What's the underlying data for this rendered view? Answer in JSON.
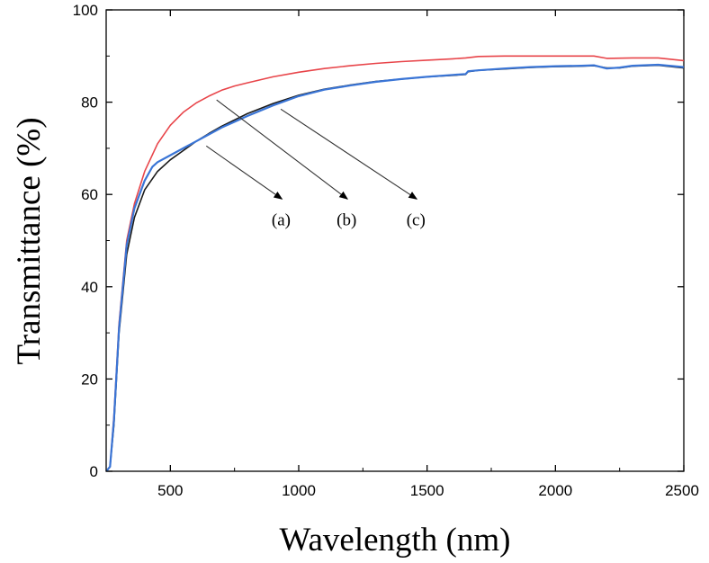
{
  "chart_data": {
    "type": "line",
    "title": "",
    "xlabel": "Wavelength (nm)",
    "ylabel": "Transmittance (%)",
    "xlim": [
      250,
      2500
    ],
    "ylim": [
      0,
      100
    ],
    "xticks": [
      500,
      1000,
      1500,
      2000,
      2500
    ],
    "yticks": [
      0,
      20,
      40,
      60,
      80,
      100
    ],
    "grid": false,
    "series": [
      {
        "name": "(a)",
        "color": "#1a1a1a",
        "points": [
          [
            250,
            0
          ],
          [
            265,
            1
          ],
          [
            280,
            10
          ],
          [
            300,
            30
          ],
          [
            330,
            47
          ],
          [
            360,
            55
          ],
          [
            400,
            61
          ],
          [
            450,
            65
          ],
          [
            500,
            67.5
          ],
          [
            550,
            69.5
          ],
          [
            600,
            71.5
          ],
          [
            650,
            73.2
          ],
          [
            700,
            74.8
          ],
          [
            800,
            77.5
          ],
          [
            900,
            79.7
          ],
          [
            1000,
            81.5
          ],
          [
            1100,
            82.8
          ],
          [
            1200,
            83.7
          ],
          [
            1300,
            84.5
          ],
          [
            1400,
            85
          ],
          [
            1500,
            85.5
          ],
          [
            1600,
            85.8
          ],
          [
            1650,
            86
          ],
          [
            1660,
            86.6
          ],
          [
            1700,
            86.9
          ],
          [
            1800,
            87.2
          ],
          [
            1900,
            87.5
          ],
          [
            2000,
            87.7
          ],
          [
            2100,
            87.8
          ],
          [
            2150,
            87.9
          ],
          [
            2200,
            87.4
          ],
          [
            2250,
            87.4
          ],
          [
            2300,
            87.8
          ],
          [
            2400,
            88
          ],
          [
            2500,
            87.4
          ]
        ]
      },
      {
        "name": "(b)",
        "color": "#e8454a",
        "points": [
          [
            250,
            0
          ],
          [
            265,
            1
          ],
          [
            280,
            12
          ],
          [
            300,
            32
          ],
          [
            330,
            50
          ],
          [
            360,
            58
          ],
          [
            400,
            65
          ],
          [
            450,
            71
          ],
          [
            500,
            75
          ],
          [
            550,
            77.8
          ],
          [
            600,
            79.8
          ],
          [
            650,
            81.3
          ],
          [
            700,
            82.6
          ],
          [
            750,
            83.5
          ],
          [
            800,
            84.2
          ],
          [
            900,
            85.5
          ],
          [
            1000,
            86.5
          ],
          [
            1100,
            87.3
          ],
          [
            1200,
            87.9
          ],
          [
            1300,
            88.4
          ],
          [
            1400,
            88.8
          ],
          [
            1500,
            89.1
          ],
          [
            1600,
            89.4
          ],
          [
            1650,
            89.6
          ],
          [
            1700,
            89.9
          ],
          [
            1800,
            90
          ],
          [
            1900,
            90
          ],
          [
            2000,
            90
          ],
          [
            2100,
            90
          ],
          [
            2150,
            90
          ],
          [
            2200,
            89.5
          ],
          [
            2300,
            89.6
          ],
          [
            2400,
            89.6
          ],
          [
            2500,
            89
          ]
        ]
      },
      {
        "name": "(c)",
        "color": "#3a75d6",
        "points": [
          [
            250,
            0
          ],
          [
            265,
            1
          ],
          [
            280,
            11
          ],
          [
            300,
            31
          ],
          [
            330,
            49
          ],
          [
            360,
            57
          ],
          [
            400,
            63
          ],
          [
            430,
            66
          ],
          [
            450,
            67
          ],
          [
            500,
            68.5
          ],
          [
            550,
            70
          ],
          [
            600,
            71.5
          ],
          [
            650,
            73
          ],
          [
            700,
            74.5
          ],
          [
            800,
            77
          ],
          [
            900,
            79.3
          ],
          [
            1000,
            81.3
          ],
          [
            1100,
            82.7
          ],
          [
            1200,
            83.6
          ],
          [
            1300,
            84.4
          ],
          [
            1400,
            85
          ],
          [
            1500,
            85.5
          ],
          [
            1600,
            85.9
          ],
          [
            1650,
            86.1
          ],
          [
            1660,
            86.7
          ],
          [
            1700,
            86.9
          ],
          [
            1800,
            87.3
          ],
          [
            1900,
            87.6
          ],
          [
            2000,
            87.8
          ],
          [
            2100,
            87.9
          ],
          [
            2150,
            88
          ],
          [
            2200,
            87.3
          ],
          [
            2250,
            87.5
          ],
          [
            2300,
            87.9
          ],
          [
            2400,
            88.1
          ],
          [
            2500,
            87.6
          ]
        ]
      }
    ],
    "annotations": [
      {
        "text": "(a)",
        "from": [
          640,
          70.5
        ],
        "to": [
          935,
          59
        ]
      },
      {
        "text": "(b)",
        "from": [
          680,
          80.5
        ],
        "to": [
          1190,
          59
        ]
      },
      {
        "text": "(c)",
        "from": [
          930,
          78.5
        ],
        "to": [
          1460,
          59
        ]
      }
    ]
  }
}
